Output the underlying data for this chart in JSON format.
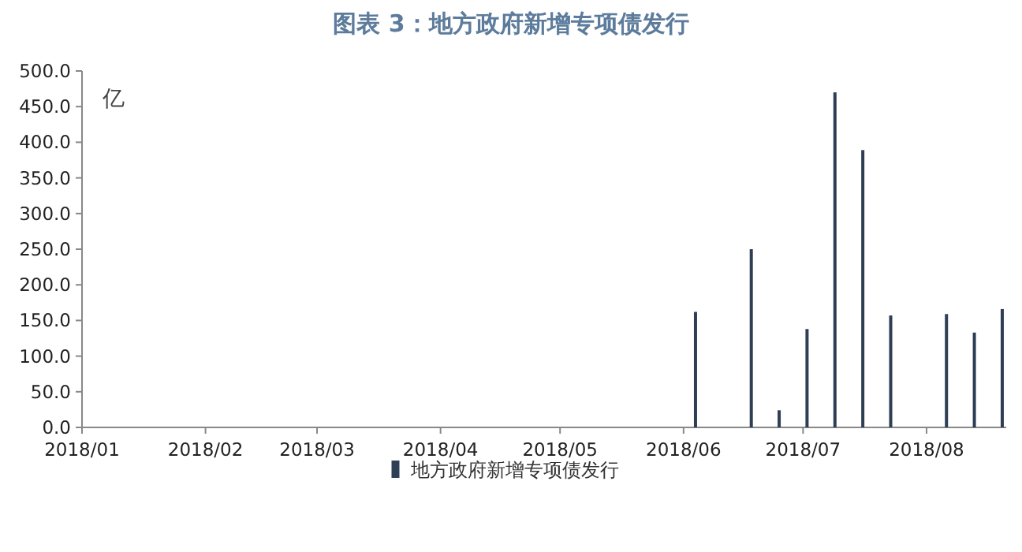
{
  "chart_data": {
    "type": "bar",
    "title": "图表 3：地方政府新增专项债发行",
    "ylabel": "亿",
    "x": [
      "2018-06-04",
      "2018-06-18",
      "2018-06-25",
      "2018-07-02",
      "2018-07-09",
      "2018-07-16",
      "2018-07-23",
      "2018-08-06",
      "2018-08-13",
      "2018-08-20"
    ],
    "series": [
      {
        "name": "地方政府新增专项债发行",
        "color": "#2e3f55",
        "values": [
          162,
          250,
          24,
          138,
          470,
          389,
          157,
          159,
          133,
          166
        ]
      }
    ],
    "xlim": [
      "2018-01-01",
      "2018-08-21"
    ],
    "xticks": [
      {
        "value": "2018-01",
        "label": "2018/01"
      },
      {
        "value": "2018-02",
        "label": "2018/02"
      },
      {
        "value": "2018-03",
        "label": "2018/03"
      },
      {
        "value": "2018-04",
        "label": "2018/04"
      },
      {
        "value": "2018-05",
        "label": "2018/05"
      },
      {
        "value": "2018-06",
        "label": "2018/06"
      },
      {
        "value": "2018-07",
        "label": "2018/07"
      },
      {
        "value": "2018-08",
        "label": "2018/08"
      }
    ],
    "ylim": [
      0,
      500
    ],
    "yticks": [
      {
        "value": 0,
        "label": "0.0"
      },
      {
        "value": 50,
        "label": "50.0"
      },
      {
        "value": 100,
        "label": "100.0"
      },
      {
        "value": 150,
        "label": "150.0"
      },
      {
        "value": 200,
        "label": "200.0"
      },
      {
        "value": 250,
        "label": "250.0"
      },
      {
        "value": 300,
        "label": "300.0"
      },
      {
        "value": 350,
        "label": "350.0"
      },
      {
        "value": 400,
        "label": "400.0"
      },
      {
        "value": 450,
        "label": "450.0"
      },
      {
        "value": 500,
        "label": "500.0"
      }
    ],
    "legend": "bottom",
    "grid": false
  }
}
